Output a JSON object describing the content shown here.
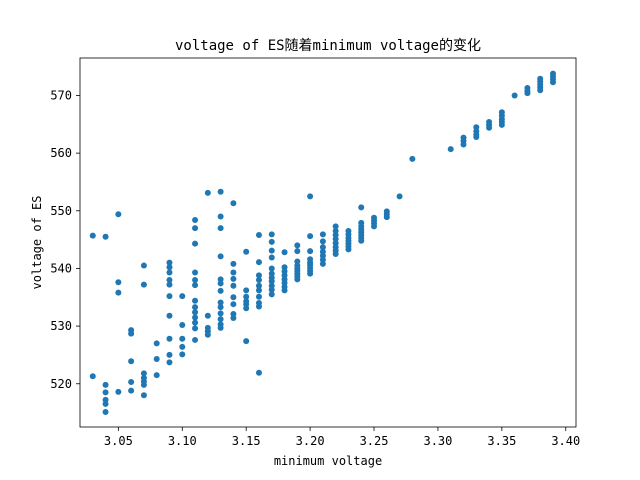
{
  "chart_data": {
    "type": "scatter",
    "title": "voltage of ES随着minimum voltage的变化",
    "xlabel": "minimum voltage",
    "ylabel": "voltage of ES",
    "xlim": [
      3.02,
      3.408
    ],
    "ylim": [
      512.5,
      576.5
    ],
    "xticks": [
      3.05,
      3.1,
      3.15,
      3.2,
      3.25,
      3.3,
      3.35,
      3.4
    ],
    "xtick_labels": [
      "3.05",
      "3.10",
      "3.15",
      "3.20",
      "3.25",
      "3.30",
      "3.35",
      "3.40"
    ],
    "yticks": [
      520,
      530,
      540,
      550,
      560,
      570
    ],
    "ytick_labels": [
      "520",
      "530",
      "540",
      "550",
      "560",
      "570"
    ],
    "grid": false,
    "marker_color": "#1f77b4",
    "points": [
      [
        3.03,
        545.7
      ],
      [
        3.03,
        521.3
      ],
      [
        3.04,
        545.5
      ],
      [
        3.04,
        519.8
      ],
      [
        3.04,
        518.5
      ],
      [
        3.04,
        517.2
      ],
      [
        3.04,
        516.5
      ],
      [
        3.04,
        515.1
      ],
      [
        3.05,
        549.4
      ],
      [
        3.05,
        537.6
      ],
      [
        3.05,
        535.8
      ],
      [
        3.05,
        518.6
      ],
      [
        3.06,
        529.3
      ],
      [
        3.06,
        528.7
      ],
      [
        3.06,
        523.9
      ],
      [
        3.06,
        520.3
      ],
      [
        3.06,
        518.8
      ],
      [
        3.07,
        540.5
      ],
      [
        3.07,
        537.2
      ],
      [
        3.07,
        521.8
      ],
      [
        3.07,
        521.0
      ],
      [
        3.07,
        520.4
      ],
      [
        3.07,
        519.8
      ],
      [
        3.07,
        518.0
      ],
      [
        3.08,
        527.0
      ],
      [
        3.08,
        524.3
      ],
      [
        3.08,
        521.5
      ],
      [
        3.09,
        541.0
      ],
      [
        3.09,
        540.2
      ],
      [
        3.09,
        539.3
      ],
      [
        3.09,
        538.0
      ],
      [
        3.09,
        537.2
      ],
      [
        3.09,
        535.2
      ],
      [
        3.09,
        531.8
      ],
      [
        3.09,
        527.8
      ],
      [
        3.09,
        525.0
      ],
      [
        3.09,
        523.7
      ],
      [
        3.1,
        535.2
      ],
      [
        3.1,
        530.2
      ],
      [
        3.1,
        527.8
      ],
      [
        3.1,
        526.4
      ],
      [
        3.1,
        525.1
      ],
      [
        3.11,
        548.4
      ],
      [
        3.11,
        547.0
      ],
      [
        3.11,
        544.3
      ],
      [
        3.11,
        539.3
      ],
      [
        3.11,
        538.0
      ],
      [
        3.11,
        537.1
      ],
      [
        3.11,
        534.4
      ],
      [
        3.11,
        533.3
      ],
      [
        3.11,
        532.4
      ],
      [
        3.11,
        531.5
      ],
      [
        3.11,
        530.6
      ],
      [
        3.11,
        529.6
      ],
      [
        3.11,
        527.6
      ],
      [
        3.12,
        553.1
      ],
      [
        3.12,
        531.8
      ],
      [
        3.12,
        529.7
      ],
      [
        3.12,
        529.1
      ],
      [
        3.12,
        528.5
      ],
      [
        3.13,
        553.3
      ],
      [
        3.13,
        549.0
      ],
      [
        3.13,
        547.0
      ],
      [
        3.13,
        542.1
      ],
      [
        3.13,
        538.1
      ],
      [
        3.13,
        537.4
      ],
      [
        3.13,
        536.1
      ],
      [
        3.13,
        534.1
      ],
      [
        3.13,
        533.3
      ],
      [
        3.13,
        532.2
      ],
      [
        3.13,
        531.2
      ],
      [
        3.13,
        530.3
      ],
      [
        3.13,
        529.7
      ],
      [
        3.14,
        551.3
      ],
      [
        3.14,
        540.8
      ],
      [
        3.14,
        539.3
      ],
      [
        3.14,
        538.2
      ],
      [
        3.14,
        537.0
      ],
      [
        3.14,
        535.0
      ],
      [
        3.14,
        533.8
      ],
      [
        3.14,
        532.1
      ],
      [
        3.14,
        531.4
      ],
      [
        3.15,
        542.9
      ],
      [
        3.15,
        536.2
      ],
      [
        3.15,
        535.1
      ],
      [
        3.15,
        534.3
      ],
      [
        3.15,
        533.8
      ],
      [
        3.15,
        533.1
      ],
      [
        3.15,
        527.4
      ],
      [
        3.16,
        545.8
      ],
      [
        3.16,
        541.1
      ],
      [
        3.16,
        538.8
      ],
      [
        3.16,
        538.0
      ],
      [
        3.16,
        537.0
      ],
      [
        3.16,
        536.2
      ],
      [
        3.16,
        535.1
      ],
      [
        3.16,
        534.0
      ],
      [
        3.16,
        533.4
      ],
      [
        3.16,
        521.9
      ],
      [
        3.17,
        545.9
      ],
      [
        3.17,
        544.6
      ],
      [
        3.17,
        543.1
      ],
      [
        3.17,
        541.9
      ],
      [
        3.17,
        540.0
      ],
      [
        3.17,
        539.1
      ],
      [
        3.17,
        538.4
      ],
      [
        3.17,
        537.8
      ],
      [
        3.17,
        537.0
      ],
      [
        3.17,
        536.3
      ],
      [
        3.17,
        535.5
      ],
      [
        3.18,
        542.8
      ],
      [
        3.18,
        540.2
      ],
      [
        3.18,
        539.5
      ],
      [
        3.18,
        538.8
      ],
      [
        3.18,
        538.1
      ],
      [
        3.18,
        537.5
      ],
      [
        3.18,
        536.8
      ],
      [
        3.18,
        536.2
      ],
      [
        3.19,
        544.0
      ],
      [
        3.19,
        543.0
      ],
      [
        3.19,
        541.2
      ],
      [
        3.19,
        540.5
      ],
      [
        3.19,
        540.0
      ],
      [
        3.19,
        539.6
      ],
      [
        3.19,
        539.1
      ],
      [
        3.19,
        538.6
      ],
      [
        3.19,
        538.1
      ],
      [
        3.2,
        552.5
      ],
      [
        3.2,
        545.6
      ],
      [
        3.2,
        543.0
      ],
      [
        3.2,
        541.6
      ],
      [
        3.2,
        541.0
      ],
      [
        3.2,
        540.6
      ],
      [
        3.2,
        540.1
      ],
      [
        3.2,
        539.6
      ],
      [
        3.2,
        539.1
      ],
      [
        3.21,
        545.9
      ],
      [
        3.21,
        544.7
      ],
      [
        3.21,
        543.7
      ],
      [
        3.21,
        542.9
      ],
      [
        3.21,
        542.2
      ],
      [
        3.21,
        541.5
      ],
      [
        3.21,
        540.8
      ],
      [
        3.22,
        547.3
      ],
      [
        3.22,
        546.5
      ],
      [
        3.22,
        545.8
      ],
      [
        3.22,
        545.1
      ],
      [
        3.22,
        544.4
      ],
      [
        3.22,
        543.7
      ],
      [
        3.22,
        543.1
      ],
      [
        3.22,
        542.5
      ],
      [
        3.23,
        546.5
      ],
      [
        3.23,
        545.9
      ],
      [
        3.23,
        545.3
      ],
      [
        3.23,
        544.8
      ],
      [
        3.23,
        544.3
      ],
      [
        3.23,
        543.8
      ],
      [
        3.23,
        543.3
      ],
      [
        3.24,
        550.6
      ],
      [
        3.24,
        547.9
      ],
      [
        3.24,
        547.3
      ],
      [
        3.24,
        546.8
      ],
      [
        3.24,
        546.3
      ],
      [
        3.24,
        545.8
      ],
      [
        3.24,
        545.3
      ],
      [
        3.24,
        544.8
      ],
      [
        3.25,
        548.8
      ],
      [
        3.25,
        548.3
      ],
      [
        3.25,
        547.8
      ],
      [
        3.25,
        547.3
      ],
      [
        3.26,
        549.9
      ],
      [
        3.26,
        549.4
      ],
      [
        3.26,
        548.9
      ],
      [
        3.27,
        552.5
      ],
      [
        3.28,
        559.0
      ],
      [
        3.31,
        560.7
      ],
      [
        3.32,
        562.7
      ],
      [
        3.32,
        562.1
      ],
      [
        3.32,
        561.5
      ],
      [
        3.33,
        564.5
      ],
      [
        3.33,
        563.8
      ],
      [
        3.33,
        563.2
      ],
      [
        3.33,
        562.8
      ],
      [
        3.34,
        565.4
      ],
      [
        3.34,
        564.9
      ],
      [
        3.34,
        564.4
      ],
      [
        3.35,
        567.1
      ],
      [
        3.35,
        566.5
      ],
      [
        3.35,
        565.9
      ],
      [
        3.35,
        565.4
      ],
      [
        3.35,
        564.9
      ],
      [
        3.36,
        570.0
      ],
      [
        3.37,
        571.3
      ],
      [
        3.37,
        570.8
      ],
      [
        3.37,
        570.4
      ],
      [
        3.38,
        572.9
      ],
      [
        3.38,
        572.4
      ],
      [
        3.38,
        571.9
      ],
      [
        3.38,
        571.4
      ],
      [
        3.38,
        570.9
      ],
      [
        3.39,
        573.8
      ],
      [
        3.39,
        573.3
      ],
      [
        3.39,
        572.8
      ],
      [
        3.39,
        572.3
      ]
    ]
  }
}
